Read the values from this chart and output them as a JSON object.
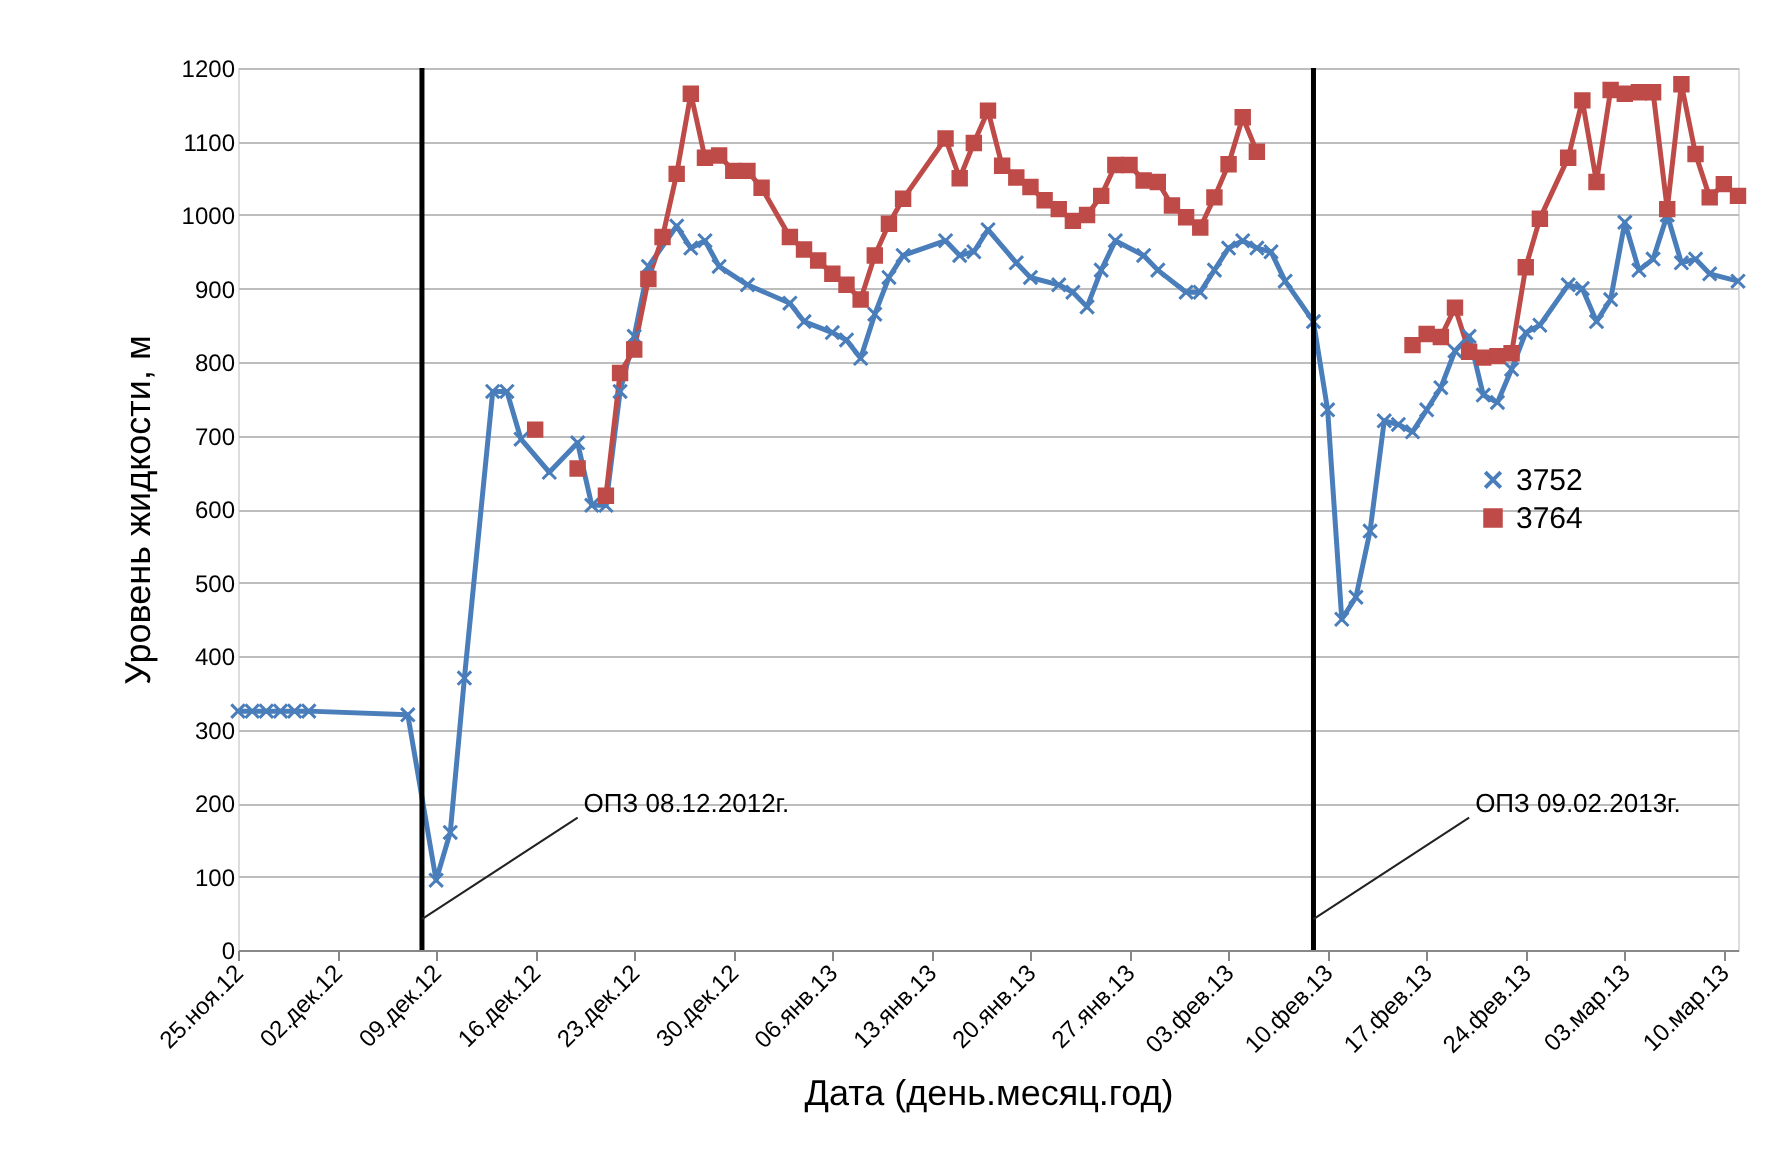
{
  "chart_data": {
    "type": "line",
    "xlabel": "Дата (день.месяц.год)",
    "ylabel": "Уровень жидкости, м",
    "xlim": [
      "2012-11-25",
      "2013-03-11"
    ],
    "xticks": [
      {
        "value": "2012-11-25",
        "label": "25.ноя.12"
      },
      {
        "value": "2012-12-02",
        "label": "02.дек.12"
      },
      {
        "value": "2012-12-09",
        "label": "09.дек.12"
      },
      {
        "value": "2012-12-16",
        "label": "16.дек.12"
      },
      {
        "value": "2012-12-23",
        "label": "23.дек.12"
      },
      {
        "value": "2012-12-30",
        "label": "30.дек.12"
      },
      {
        "value": "2013-01-06",
        "label": "06.янв.13"
      },
      {
        "value": "2013-01-13",
        "label": "13.янв.13"
      },
      {
        "value": "2013-01-20",
        "label": "20.янв.13"
      },
      {
        "value": "2013-01-27",
        "label": "27.янв.13"
      },
      {
        "value": "2013-02-03",
        "label": "03.фев.13"
      },
      {
        "value": "2013-02-10",
        "label": "10.фев.13"
      },
      {
        "value": "2013-02-17",
        "label": "17.фев.13"
      },
      {
        "value": "2013-02-24",
        "label": "24.фев.13"
      },
      {
        "value": "2013-03-03",
        "label": "03.мар.13"
      },
      {
        "value": "2013-03-10",
        "label": "10.мар.13"
      }
    ],
    "ylim": [
      0,
      1200
    ],
    "yticks": [
      0,
      100,
      200,
      300,
      400,
      500,
      600,
      700,
      800,
      900,
      1000,
      1100,
      1200
    ],
    "grid": "y",
    "legend": "right",
    "line_style": "solid",
    "series": [
      {
        "name": "3752",
        "color": "#4a7ebb",
        "marker": "cross",
        "x": [
          "2012-11-25",
          "2012-11-26",
          "2012-11-27",
          "2012-11-28",
          "2012-11-29",
          "2012-11-30",
          "2012-12-07",
          "2012-12-09",
          "2012-12-10",
          "2012-12-11",
          "2012-12-13",
          "2012-12-14",
          "2012-12-15",
          "2012-12-17",
          "2012-12-19",
          "2012-12-20",
          "2012-12-21",
          "2012-12-22",
          "2012-12-23",
          "2012-12-24",
          "2012-12-26",
          "2012-12-27",
          "2012-12-28",
          "2012-12-29",
          "2012-12-31",
          "2013-01-03",
          "2013-01-04",
          "2013-01-06",
          "2013-01-07",
          "2013-01-08",
          "2013-01-09",
          "2013-01-10",
          "2013-01-11",
          "2013-01-14",
          "2013-01-15",
          "2013-01-16",
          "2013-01-17",
          "2013-01-19",
          "2013-01-20",
          "2013-01-22",
          "2013-01-23",
          "2013-01-24",
          "2013-01-25",
          "2013-01-26",
          "2013-01-28",
          "2013-01-29",
          "2013-01-31",
          "2013-02-01",
          "2013-02-02",
          "2013-02-03",
          "2013-02-04",
          "2013-02-05",
          "2013-02-06",
          "2013-02-07",
          "2013-02-09",
          "2013-02-10",
          "2013-02-11",
          "2013-02-12",
          "2013-02-13",
          "2013-02-14",
          "2013-02-15",
          "2013-02-16",
          "2013-02-17",
          "2013-02-18",
          "2013-02-19",
          "2013-02-20",
          "2013-02-21",
          "2013-02-22",
          "2013-02-23",
          "2013-02-24",
          "2013-02-25",
          "2013-02-27",
          "2013-02-28",
          "2013-03-01",
          "2013-03-02",
          "2013-03-03",
          "2013-03-04",
          "2013-03-05",
          "2013-03-06",
          "2013-03-07",
          "2013-03-08",
          "2013-03-09",
          "2013-03-11"
        ],
        "values": [
          325,
          325,
          325,
          325,
          325,
          325,
          320,
          95,
          160,
          370,
          760,
          760,
          695,
          650,
          690,
          605,
          605,
          760,
          835,
          930,
          985,
          955,
          965,
          930,
          905,
          880,
          855,
          840,
          830,
          805,
          865,
          915,
          945,
          965,
          945,
          950,
          980,
          935,
          915,
          905,
          895,
          875,
          925,
          965,
          945,
          925,
          895,
          895,
          925,
          955,
          965,
          955,
          950,
          910,
          855,
          735,
          450,
          480,
          570,
          720,
          715,
          705,
          735,
          765,
          815,
          835,
          755,
          745,
          790,
          840,
          850,
          905,
          900,
          855,
          885,
          990,
          925,
          940,
          1000,
          935,
          940,
          920,
          910
        ]
      },
      {
        "name": "3764",
        "color": "#be4b48",
        "marker": "square",
        "x": [
          "2012-12-16",
          "2012-12-17",
          "2012-12-19",
          "2012-12-20",
          "2012-12-21",
          "2012-12-22",
          "2012-12-23",
          "2012-12-24",
          "2012-12-25",
          "2012-12-26",
          "2012-12-27",
          "2012-12-28",
          "2012-12-29",
          "2012-12-30",
          "2012-12-31",
          "2013-01-01",
          "2013-01-03",
          "2013-01-04",
          "2013-01-05",
          "2013-01-06",
          "2013-01-07",
          "2013-01-08",
          "2013-01-09",
          "2013-01-10",
          "2013-01-11",
          "2013-01-14",
          "2013-01-15",
          "2013-01-16",
          "2013-01-17",
          "2013-01-18",
          "2013-01-19",
          "2013-01-20",
          "2013-01-21",
          "2013-01-22",
          "2013-01-23",
          "2013-01-24",
          "2013-01-25",
          "2013-01-26",
          "2013-01-27",
          "2013-01-28",
          "2013-01-29",
          "2013-01-30",
          "2013-01-31",
          "2013-02-01",
          "2013-02-02",
          "2013-02-03",
          "2013-02-04",
          "2013-02-05",
          "2013-02-10",
          "2013-02-16",
          "2013-02-17",
          "2013-02-18",
          "2013-02-19",
          "2013-02-20",
          "2013-02-21",
          "2013-02-22",
          "2013-02-23",
          "2013-02-24",
          "2013-02-25",
          "2013-02-27",
          "2013-02-28",
          "2013-03-01",
          "2013-03-02",
          "2013-03-03",
          "2013-03-04",
          "2013-03-05",
          "2013-03-06",
          "2013-03-07",
          "2013-03-08",
          "2013-03-09",
          "2013-03-10",
          "2013-03-11"
        ],
        "values": [
          708,
          null,
          655,
          null,
          618,
          785,
          817,
          913,
          970,
          1056,
          1165,
          1078,
          1081,
          1060,
          1060,
          1037,
          970,
          953,
          938,
          920,
          905,
          885,
          945,
          988,
          1022,
          1104,
          1050,
          1098,
          1142,
          1067,
          1051,
          1038,
          1020,
          1008,
          992,
          1000,
          1026,
          1068,
          1068,
          1047,
          1045,
          1013,
          997,
          983,
          1024,
          1069,
          1133,
          1086,
          null,
          823,
          838,
          834,
          874,
          814,
          806,
          808,
          812,
          929,
          995,
          1078,
          1156,
          1045,
          1170,
          1165,
          1167,
          1167,
          1008,
          1178,
          1083,
          1024,
          1042,
          1026
        ]
      }
    ],
    "ref_lines": [
      {
        "axis": "x",
        "value": "2012-12-08",
        "label": "ОПЗ 08.12.2012г.",
        "color": "#000000"
      },
      {
        "axis": "x",
        "value": "2013-02-09",
        "label": "ОПЗ 09.02.2013г.",
        "color": "#000000"
      }
    ]
  }
}
